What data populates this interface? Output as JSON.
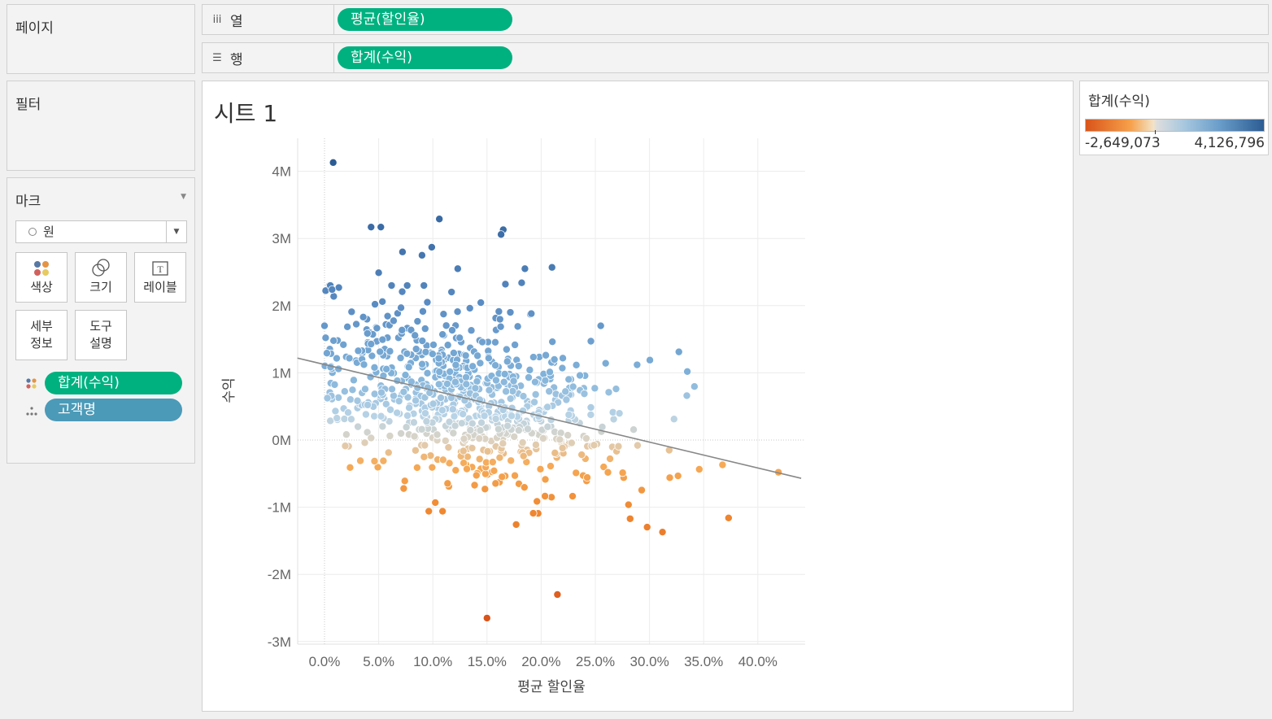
{
  "panels": {
    "pages_title": "페이지",
    "filters_title": "필터",
    "marks_title": "마크",
    "mark_type": "원"
  },
  "shelves": {
    "columns_label": "열",
    "columns_icon": "columns-icon",
    "columns_pill": "평균(할인율)",
    "rows_label": "행",
    "rows_icon": "rows-icon",
    "rows_pill": "합계(수익)"
  },
  "mark_buttons": {
    "color": "색상",
    "size": "크기",
    "label": "레이블",
    "detail_line1": "세부",
    "detail_line2": "정보",
    "tooltip_line1": "도구",
    "tooltip_line2": "설명"
  },
  "mark_pills": {
    "color_pill": "합계(수익)",
    "detail_pill": "고객명"
  },
  "sheet": {
    "title": "시트 1"
  },
  "legend": {
    "title": "합계(수익)",
    "min_label": "-2,649,073",
    "max_label": "4,126,796",
    "colors": {
      "negative": "#d9541a",
      "neutral": "#dddddd",
      "positive": "#2c5c93"
    }
  },
  "colors": {
    "pill_green": "#00b180",
    "pill_teal": "#4b9ab8",
    "trend_line": "#888888"
  },
  "chart_data": {
    "type": "scatter",
    "xlabel": "평균 할인율",
    "ylabel": "수익",
    "x_ticks": [
      "0.0%",
      "5.0%",
      "10.0%",
      "15.0%",
      "20.0%",
      "25.0%",
      "30.0%",
      "35.0%",
      "40.0%"
    ],
    "y_ticks": [
      "4M",
      "3M",
      "2M",
      "1M",
      "0M",
      "-1M",
      "-2M",
      "-3M"
    ],
    "xlim": [
      -2.5,
      44.0
    ],
    "ylim": [
      -3.1,
      4.5
    ],
    "x_unit": "percent",
    "y_unit": "millions",
    "trend_line": {
      "x": [
        -2.5,
        44.0
      ],
      "y": [
        1.22,
        -0.57
      ]
    },
    "color_range": [
      -2.649073,
      4.126796
    ],
    "highlighted_points": {
      "x": [
        0.8,
        4.3,
        5.2,
        10.6,
        16.5,
        16.3,
        7.2,
        9.9,
        9.0,
        12.3,
        18.5,
        21.0,
        5.0,
        0.7,
        15.0,
        21.5,
        31.2,
        37.3,
        25.5,
        18.2,
        16.7,
        0.0,
        41.9
      ],
      "y": [
        4.13,
        3.17,
        3.17,
        3.29,
        3.13,
        3.06,
        2.8,
        2.87,
        2.75,
        2.55,
        2.55,
        2.57,
        2.49,
        2.24,
        -2.65,
        -2.3,
        -1.37,
        -1.16,
        1.7,
        2.34,
        2.32,
        1.7,
        -0.48
      ]
    },
    "random_points": {
      "count": 760,
      "x_center": 13.0,
      "x_spread": 8.0,
      "x_min": 0.0,
      "x_max": 38.0,
      "slope_per_pct": -0.0385,
      "intercept": 1.12,
      "noise": 0.62
    }
  }
}
